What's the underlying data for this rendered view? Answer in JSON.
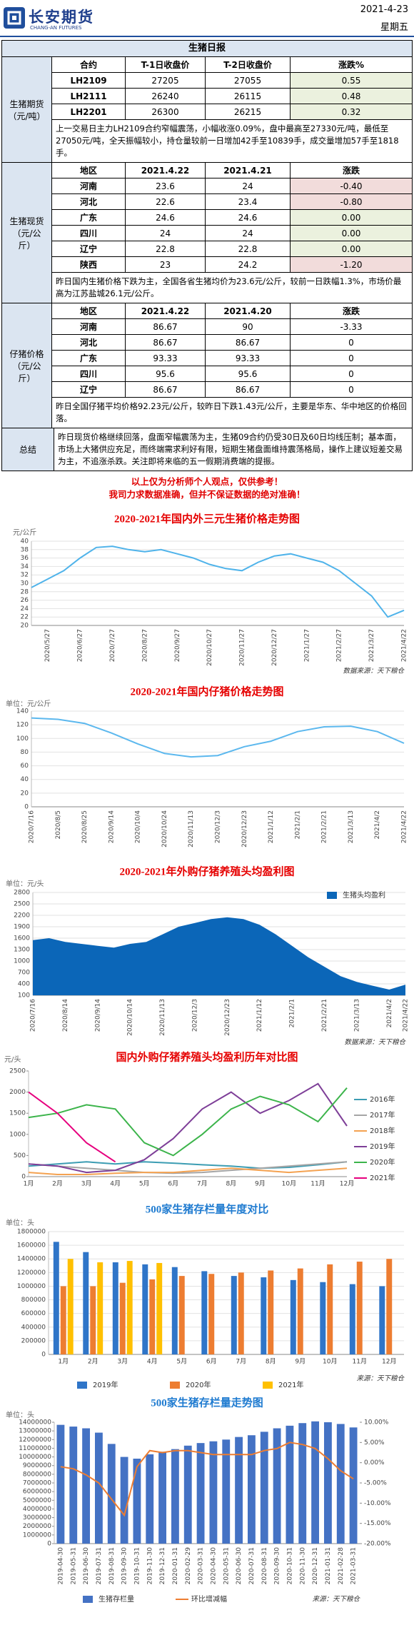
{
  "header": {
    "title": "长安期货",
    "subtitle": "CHANG-AN FUTURES",
    "date": "2021-4-23",
    "weekday": "星期五"
  },
  "report": {
    "title": "生猪日报",
    "sections": [
      {
        "label": [
          "生猪期货",
          "（元/吨）"
        ],
        "highlight": true,
        "columns": [
          "合约",
          "T-1日收盘价",
          "T-2日收盘价",
          "涨跌%"
        ],
        "rows": [
          [
            "LH2109",
            "27205",
            "27055",
            "0.55"
          ],
          [
            "LH2111",
            "26240",
            "26115",
            "0.48"
          ],
          [
            "LH2201",
            "26300",
            "26215",
            "0.32"
          ]
        ],
        "note": "上一交易日主力LH2109合约窄幅震荡，小幅收涨0.09%，盘中最高至27330元/吨，最低至27050元/吨，全天振幅较小，持仓量较前一日增加42手至10839手，成交量增加57手至1818手。"
      },
      {
        "label": [
          "生猪现货",
          "（元/公",
          "斤）"
        ],
        "highlight": true,
        "columns": [
          "地区",
          "2021.4.22",
          "2021.4.21",
          "涨跌"
        ],
        "rows": [
          [
            "河南",
            "23.6",
            "24",
            "-0.40"
          ],
          [
            "河北",
            "22.6",
            "23.4",
            "-0.80"
          ],
          [
            "广东",
            "24.6",
            "24.6",
            "0.00"
          ],
          [
            "四川",
            "24",
            "24",
            "0.00"
          ],
          [
            "辽宁",
            "22.8",
            "22.8",
            "0.00"
          ],
          [
            "陕西",
            "23",
            "24.2",
            "-1.20"
          ]
        ],
        "note": "昨日国内生猪价格下跌为主，全国各省生猪均价为23.6元/公斤，较前一日跌幅1.3%，市场价最高为江苏盐城26.1元/公斤。"
      },
      {
        "label": [
          "仔猪价格",
          "（元/公",
          "斤）"
        ],
        "highlight": false,
        "columns": [
          "地区",
          "2021.4.22",
          "2021.4.20",
          "涨跌"
        ],
        "rows": [
          [
            "河南",
            "86.67",
            "90",
            "-3.33"
          ],
          [
            "河北",
            "86.67",
            "86.67",
            "0"
          ],
          [
            "广东",
            "93.33",
            "93.33",
            "0"
          ],
          [
            "四川",
            "95.6",
            "95.6",
            "0"
          ],
          [
            "辽宁",
            "86.67",
            "86.67",
            "0"
          ]
        ],
        "note": "昨日全国仔猪平均价格92.23元/公斤，较昨日下跌1.43元/公斤，主要是华东、华中地区的价格回落。"
      },
      {
        "label": [
          "总结"
        ],
        "note": "昨日现货价格继续回落，盘面窄幅震荡为主，生猪09合约仍受30日及60日均线压制；基本面，市场上大猪供应充足，而终端需求利好有限，短期生猪盘面维持震荡格局，操作上建议短差交易为主，不追涨杀跌。关注即将来临的五一假期消费端的提振。"
      }
    ],
    "disclaimer": [
      "以上仅为分析师个人观点，仅供参考！",
      "我司力求数据准确，但并不保证数据的绝对准确！"
    ]
  },
  "chart_data": [
    {
      "type": "line",
      "title": "2020-2021年国内外三元生猪价格走势图",
      "unit": "元/公斤",
      "source": "数据来源：天下粮仓",
      "grid": true,
      "color": "#4fb3ea",
      "categories": [
        null,
        "2020/5/27",
        null,
        "2020/6/27",
        null,
        "2020/7/27",
        null,
        "2020/8/27",
        null,
        "2020/9/27",
        null,
        "2020/10/27",
        null,
        "2020/11/27",
        null,
        "2020/12/27",
        null,
        "2021/1/27",
        null,
        "2021/2/27",
        null,
        "2021/3/27",
        null,
        "2021/4/22"
      ],
      "values": [
        29,
        31,
        33,
        36,
        38.5,
        38.8,
        38,
        37.5,
        38,
        37,
        36,
        34.5,
        33.5,
        33,
        35,
        36.5,
        37,
        36,
        35,
        33,
        30,
        27,
        22,
        23.6
      ],
      "ylim": [
        20,
        40
      ],
      "yticks": [
        20,
        22,
        24,
        26,
        28,
        30,
        32,
        34,
        36,
        38,
        40
      ]
    },
    {
      "type": "line",
      "title": "2020-2021年国内仔猪价格走势图",
      "unit": "单位：元/公斤",
      "grid": true,
      "color": "#5cb8ee",
      "categories": [
        "2020/7/16",
        "2020/8/5",
        "2020/8/25",
        "2020/9/14",
        "2020/10/4",
        "2020/10/24",
        "2020/11/13",
        "2020/12/3",
        "2020/12/23",
        "2021/1/12",
        "2021/2/1",
        "2021/2/21",
        "2021/3/13",
        "2021/4/2",
        "2021/4/22"
      ],
      "values": [
        130,
        128,
        122,
        108,
        92,
        78,
        73,
        75,
        88,
        96,
        110,
        117,
        118,
        110,
        93
      ],
      "ylim": [
        0,
        140
      ],
      "yticks": [
        0,
        20,
        40,
        60,
        80,
        100,
        120,
        140
      ]
    },
    {
      "type": "area",
      "title": "2020-2021年外购仔猪养殖头均盈利图",
      "unit": "单位：元/头",
      "source": "数据来源：天下粮仓",
      "grid": true,
      "legend": "upper right",
      "categories": [
        "2020/7/16",
        null,
        "2020/8/14",
        null,
        "2020/9/14",
        null,
        "2020/10/14",
        null,
        "2020/11/13",
        null,
        "2020/12/3",
        null,
        "2020/12/23",
        null,
        "2021/1/12",
        null,
        "2021/2/1",
        null,
        "2021/2/21",
        null,
        "2021/3/13",
        null,
        "2021/4/2",
        "2021/4/22"
      ],
      "series": [
        {
          "name": "生猪头均盈利",
          "color": "#0b66b8",
          "values": [
            1550,
            1600,
            1500,
            1450,
            1400,
            1350,
            1450,
            1500,
            1700,
            1900,
            2000,
            2100,
            2150,
            2100,
            1950,
            1700,
            1400,
            1100,
            850,
            600,
            450,
            350,
            250,
            380
          ]
        }
      ],
      "ylim": [
        100,
        2800
      ],
      "yticks": [
        100,
        400,
        700,
        1000,
        1300,
        1600,
        1900,
        2200,
        2500,
        2800
      ]
    },
    {
      "type": "line",
      "title": "国内外购仔猪养殖头均盈利历年对比图",
      "unit": "元/头",
      "grid": false,
      "legend": "right",
      "categories": [
        "1月",
        "2月",
        "3月",
        "4月",
        "5月",
        "6月",
        "7月",
        "8月",
        "9月",
        "10月",
        "11月",
        "12月"
      ],
      "series": [
        {
          "name": "2016年",
          "color": "#3c9db3",
          "values": [
            250,
            300,
            350,
            300,
            350,
            320,
            280,
            250,
            200,
            220,
            280,
            350
          ]
        },
        {
          "name": "2017年",
          "color": "#a5a5a5",
          "values": [
            300,
            250,
            200,
            150,
            100,
            80,
            100,
            150,
            200,
            250,
            300,
            350
          ]
        },
        {
          "name": "2018年",
          "color": "#f4a251",
          "values": [
            100,
            50,
            50,
            80,
            100,
            100,
            150,
            200,
            150,
            100,
            150,
            200
          ]
        },
        {
          "name": "2019年",
          "color": "#7e3f98",
          "values": [
            300,
            250,
            100,
            150,
            400,
            900,
            1600,
            2000,
            1500,
            1800,
            2200,
            1200
          ]
        },
        {
          "name": "2020年",
          "color": "#3cb44b",
          "values": [
            1400,
            1500,
            1700,
            1600,
            800,
            500,
            1000,
            1600,
            1900,
            1700,
            1300,
            2100
          ]
        },
        {
          "name": "2021年",
          "color": "#e6007e",
          "values": [
            2000,
            1500,
            800,
            350,
            null,
            null,
            null,
            null,
            null,
            null,
            null,
            null
          ]
        }
      ],
      "ylim": [
        0,
        2500
      ],
      "yticks": [
        0,
        500,
        1000,
        1500,
        2000,
        2500
      ]
    },
    {
      "type": "bar",
      "title": "500家生猪存栏量年度对比",
      "unit": "单位：头",
      "source": "来源：天下粮仓",
      "grid": true,
      "legend": "bottom",
      "categories": [
        "1月",
        "2月",
        "3月",
        "4月",
        "5月",
        "6月",
        "7月",
        "8月",
        "9月",
        "10月",
        "11月",
        "12月"
      ],
      "series": [
        {
          "name": "2019年",
          "color": "#2f75c8",
          "values": [
            1650000,
            1500000,
            1350000,
            1320000,
            1280000,
            1220000,
            1150000,
            1130000,
            1090000,
            1060000,
            1030000,
            1000000
          ]
        },
        {
          "name": "2020年",
          "color": "#ed7d31",
          "values": [
            1000000,
            1000000,
            1050000,
            1100000,
            1150000,
            1180000,
            1200000,
            1230000,
            1260000,
            1320000,
            1360000,
            1400000
          ]
        },
        {
          "name": "2021年",
          "color": "#ffc000",
          "values": [
            1400000,
            1350000,
            1370000,
            1340000,
            null,
            null,
            null,
            null,
            null,
            null,
            null,
            null
          ]
        }
      ],
      "ylim": [
        0,
        1800000
      ],
      "yticks": [
        0,
        200000,
        400000,
        600000,
        800000,
        1000000,
        1200000,
        1400000,
        1600000,
        1800000
      ]
    },
    {
      "type": "combo",
      "title": "500家生猪存栏量走势图",
      "unit": "单位：头",
      "source": "来源：天下粮仓",
      "grid": false,
      "legend": "bottom",
      "categories": [
        "2019-04-30",
        "2019-05-31",
        "2019-06-30",
        "2019-07-31",
        "2019-08-31",
        "2019-09-30",
        "2019-10-31",
        "2019-11-30",
        "2019-12-31",
        "2020-01-31",
        "2020-02-29",
        "2020-03-31",
        "2020-04-30",
        "2020-05-31",
        "2020-06-30",
        "2020-07-31",
        "2020-08-31",
        "2020-09-30",
        "2020-10-31",
        "2020-11-30",
        "2020-12-31",
        "2021-01-31",
        "2021-02-28",
        "2021-03-31"
      ],
      "series": [
        {
          "name": "生猪存栏量",
          "color": "#4472c4",
          "values": [
            13700000,
            13500000,
            13300000,
            12800000,
            11500000,
            10000000,
            9800000,
            10300000,
            10600000,
            10900000,
            11300000,
            11600000,
            11800000,
            12000000,
            12300000,
            12500000,
            12900000,
            13300000,
            13600000,
            13900000,
            14100000,
            14000000,
            13800000,
            13400000
          ]
        },
        {
          "name": "环比增减幅",
          "color": "#ed7d31",
          "axis": "y2",
          "values": [
            -1,
            -1.5,
            -3,
            -5,
            -9,
            -13,
            -1,
            3,
            2.5,
            3,
            3,
            2.5,
            2,
            2,
            2,
            2,
            3,
            3.5,
            5,
            4.5,
            3.5,
            1,
            -2,
            -4
          ]
        }
      ],
      "ylim": [
        0,
        14000000
      ],
      "yticks": [
        0,
        1000000,
        2000000,
        3000000,
        4000000,
        5000000,
        6000000,
        7000000,
        8000000,
        9000000,
        10000000,
        11000000,
        12000000,
        13000000,
        14000000
      ],
      "y2lim": [
        -20,
        10
      ],
      "y2ticks": [
        {
          "value": 10,
          "label": "10.00%"
        },
        {
          "value": 5,
          "label": "5.00%"
        },
        {
          "value": 0,
          "label": "0.00%"
        },
        {
          "value": -5,
          "label": "-5.00%"
        },
        {
          "value": -10,
          "label": "-10.00%"
        },
        {
          "value": -15,
          "label": "-15.00%"
        },
        {
          "value": -20,
          "label": "-20.00%"
        }
      ]
    }
  ]
}
